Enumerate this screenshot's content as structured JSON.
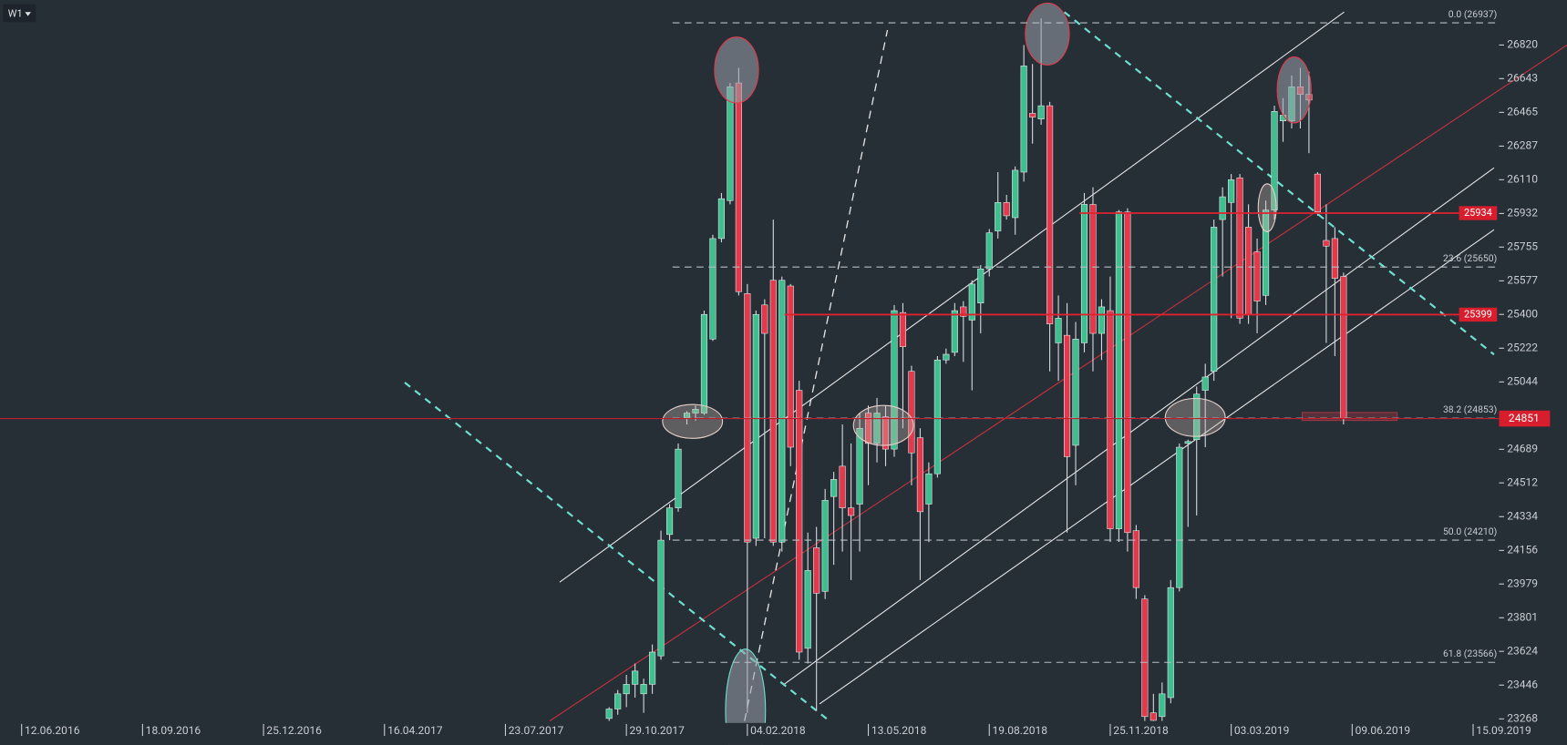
{
  "timeframe": "W1",
  "chart_data": {
    "type": "candlestick",
    "colors": {
      "up": "#3fbf8f",
      "down": "#e23a4c",
      "wick": "#d6dadf"
    },
    "ylim": [
      23257,
      27057
    ],
    "yticks": [
      26820,
      26643,
      26465,
      26287,
      26110,
      25932,
      25755,
      25577,
      25400,
      25222,
      25044,
      24689,
      24512,
      24334,
      24156,
      23979,
      23801,
      23624,
      23446,
      23268
    ],
    "xlim": [
      -2.5,
      171
    ],
    "xticks": [
      {
        "value": 0,
        "label": "12.06.2016"
      },
      {
        "value": 14,
        "label": "18.09.2016"
      },
      {
        "value": 28,
        "label": "25.12.2016"
      },
      {
        "value": 42,
        "label": "16.04.2017"
      },
      {
        "value": 56,
        "label": "23.07.2017"
      },
      {
        "value": 70,
        "label": "29.10.2017"
      },
      {
        "value": 84,
        "label": "04.02.2018"
      },
      {
        "value": 98,
        "label": "13.05.2018"
      },
      {
        "value": 112,
        "label": "19.08.2018"
      },
      {
        "value": 126,
        "label": "25.11.2018"
      },
      {
        "value": 140,
        "label": "03.03.2019"
      },
      {
        "value": 154,
        "label": "09.06.2019"
      },
      {
        "value": 168,
        "label": "15.09.2019"
      }
    ],
    "x": [
      68,
      69,
      70,
      71,
      72,
      73,
      74,
      75,
      76,
      77,
      78,
      79,
      80,
      81,
      82,
      83,
      84,
      85,
      86,
      87,
      88,
      89,
      90,
      91,
      92,
      93,
      94,
      95,
      96,
      97,
      98,
      99,
      100,
      101,
      102,
      103,
      104,
      105,
      106,
      107,
      108,
      109,
      110,
      111,
      112,
      113,
      114,
      115,
      116,
      117,
      118,
      119,
      120,
      121,
      122,
      123,
      124,
      125,
      126,
      127,
      128,
      129,
      130,
      131,
      132,
      133,
      134,
      135,
      136,
      137,
      138,
      139,
      140,
      141,
      142,
      143,
      144,
      145,
      146,
      147,
      148,
      149,
      150,
      151,
      152,
      153
    ],
    "open": [
      23270,
      23320,
      23400,
      23450,
      23400,
      23450,
      23600,
      24240,
      24380,
      24850,
      24880,
      24880,
      25270,
      25800,
      26000,
      26620,
      25510,
      24220,
      25450,
      25580,
      24200,
      25550,
      25000,
      23640,
      24170,
      23940,
      24440,
      24600,
      24380,
      24400,
      24880,
      24720,
      24860,
      24690,
      25410,
      25100,
      24750,
      24400,
      24560,
      25160,
      25200,
      25440,
      25370,
      25460,
      25640,
      25840,
      25990,
      25910,
      26150,
      26460,
      26430,
      26500,
      25250,
      25290,
      24710,
      25250,
      25980,
      25300,
      25420,
      24270,
      25940,
      24260,
      23900,
      23300,
      23280,
      23380,
      23960,
      24720,
      24740,
      25000,
      25100,
      25900,
      25990,
      26120,
      25860,
      25730,
      25500,
      25950,
      26420,
      26420,
      26600,
      26560,
      26140,
      25790,
      25800,
      25600
    ],
    "high": [
      23330,
      23420,
      23500,
      23560,
      23480,
      23660,
      24260,
      24400,
      24720,
      24890,
      24920,
      25420,
      25820,
      26040,
      26620,
      26700,
      25560,
      25420,
      25480,
      25900,
      25600,
      25560,
      25050,
      24250,
      24280,
      24480,
      24570,
      24820,
      24720,
      24880,
      24920,
      24960,
      24920,
      25450,
      25460,
      25130,
      24800,
      24620,
      25180,
      25220,
      25460,
      25470,
      25580,
      25660,
      25850,
      26150,
      26030,
      26180,
      26820,
      26720,
      26960,
      26520,
      25500,
      25460,
      25360,
      26040,
      26070,
      25480,
      25600,
      25950,
      25960,
      24290,
      23920,
      23400,
      23460,
      24000,
      24720,
      24740,
      25020,
      25140,
      25900,
      26070,
      26140,
      26140,
      25980,
      25800,
      26000,
      26500,
      26540,
      26660,
      26700,
      26680,
      26150,
      25980,
      25860,
      25620
    ],
    "low": [
      23257,
      23290,
      23330,
      23380,
      23300,
      23400,
      23580,
      24210,
      24360,
      24820,
      24840,
      24870,
      25260,
      25780,
      25980,
      25500,
      23300,
      24180,
      24220,
      24180,
      24150,
      24600,
      23580,
      23560,
      23310,
      23900,
      24080,
      24150,
      24000,
      24150,
      24500,
      24620,
      24600,
      24650,
      24800,
      24500,
      24000,
      24200,
      24540,
      25140,
      25180,
      25150,
      25000,
      25300,
      25600,
      25800,
      25900,
      25820,
      26100,
      26300,
      26400,
      25100,
      25050,
      24250,
      24500,
      25200,
      25100,
      25160,
      24200,
      24200,
      24150,
      23900,
      23257,
      23257,
      23257,
      23350,
      23940,
      24280,
      24340,
      24700,
      25050,
      25600,
      25380,
      25350,
      25350,
      25300,
      25450,
      25900,
      26310,
      26380,
      26380,
      26250,
      25920,
      25250,
      25180,
      24820
    ],
    "close": [
      23320,
      23400,
      23450,
      23520,
      23450,
      23620,
      24210,
      24380,
      24690,
      24880,
      24900,
      25400,
      25800,
      26010,
      26600,
      25520,
      24200,
      25400,
      25300,
      24200,
      25580,
      24700,
      23620,
      24050,
      23930,
      24420,
      24530,
      24380,
      24340,
      24800,
      24720,
      24880,
      24690,
      25420,
      25230,
      24670,
      24360,
      24560,
      25160,
      25190,
      25420,
      25390,
      25560,
      25640,
      25830,
      25990,
      25920,
      26160,
      26710,
      26440,
      26500,
      25350,
      25380,
      24650,
      25270,
      25980,
      25300,
      25440,
      24270,
      25940,
      24250,
      23960,
      23280,
      23260,
      23400,
      23960,
      24700,
      24730,
      24980,
      25070,
      25860,
      26020,
      26110,
      25380,
      25400,
      25470,
      25950,
      26470,
      26450,
      26600,
      26560,
      26530,
      25940,
      25760,
      25590,
      24851
    ],
    "fib_levels": [
      {
        "value": 26937,
        "label": "0.0 (26937)"
      },
      {
        "value": 25650,
        "label": "23.6 (25650)"
      },
      {
        "value": 24853,
        "label": "38.2 (24853)"
      },
      {
        "value": 24210,
        "label": "50.0 (24210)"
      },
      {
        "value": 23566,
        "label": "61.8 (23566)"
      }
    ],
    "price_lines": [
      25934,
      25399
    ],
    "last_price": 24851
  }
}
